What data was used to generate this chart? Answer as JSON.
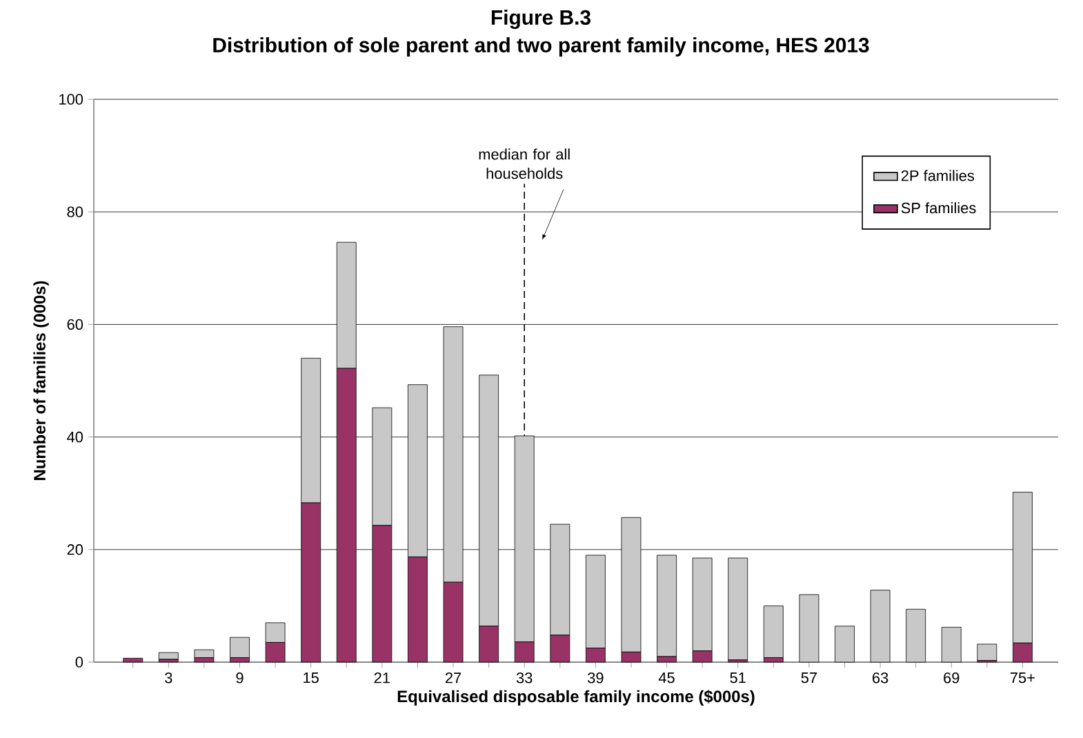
{
  "chart_data": {
    "type": "bar",
    "stacked": true,
    "title": "Figure B.3",
    "subtitle": "Distribution of sole parent and two parent family income, HES 2013",
    "xlabel": "Equivalised disposable family income ($000s)",
    "ylabel": "Number of families (000s)",
    "categories": [
      null,
      "3",
      null,
      "9",
      null,
      "15",
      null,
      "21",
      null,
      "27",
      null,
      "33",
      null,
      "39",
      null,
      "45",
      null,
      "51",
      null,
      "57",
      null,
      "63",
      null,
      "69",
      null,
      "75+"
    ],
    "series": [
      {
        "name": "SP families",
        "color": "#993366",
        "values": [
          0.7,
          0.5,
          0.8,
          0.8,
          3.5,
          28.3,
          52.2,
          24.3,
          18.7,
          14.2,
          6.4,
          3.6,
          4.8,
          2.5,
          1.8,
          1.0,
          2.0,
          0.4,
          0.8,
          0,
          0,
          0,
          0,
          0,
          0.3,
          3.4
        ]
      },
      {
        "name": "2P families",
        "color": "#c8c8c8",
        "values": [
          0,
          1.2,
          1.4,
          3.6,
          3.5,
          25.7,
          22.4,
          20.9,
          30.6,
          45.4,
          44.6,
          36.6,
          19.7,
          16.5,
          23.9,
          18.0,
          16.5,
          18.1,
          9.2,
          12.0,
          6.4,
          12.8,
          9.4,
          6.2,
          2.9,
          26.8
        ]
      }
    ],
    "ylim": [
      0,
      100
    ],
    "yticks": [
      0,
      20,
      40,
      60,
      80,
      100
    ],
    "grid": "y",
    "legend": "top right",
    "ref_lines": [
      {
        "axis": "x",
        "value": "33",
        "label": "median for all households",
        "line_style": "dashed"
      }
    ]
  }
}
